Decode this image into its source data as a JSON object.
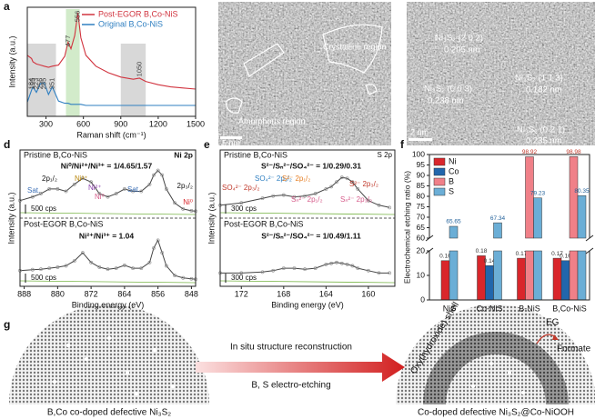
{
  "panel_labels": [
    "a",
    "b",
    "c",
    "d",
    "e",
    "f",
    "g"
  ],
  "chart_data": [
    {
      "type": "raman",
      "xlabel": "Raman shift (cm⁻¹)",
      "ylabel": "Intensity (a.u.)",
      "x": [
        150,
        184,
        195,
        223,
        256,
        285,
        320,
        351,
        400,
        450,
        477,
        500,
        530,
        556,
        580,
        620,
        700,
        800,
        900,
        1000,
        1050,
        1100,
        1200,
        1300,
        1400,
        1500
      ],
      "series": [
        {
          "name": "Post-EGOR B,Co-NiS",
          "color": "#d1343f",
          "values": [
            0.56,
            0.53,
            0.5,
            0.48,
            0.47,
            0.46,
            0.45,
            0.46,
            0.47,
            0.55,
            0.68,
            0.62,
            0.74,
            0.95,
            0.72,
            0.56,
            0.46,
            0.4,
            0.36,
            0.34,
            0.35,
            0.32,
            0.29,
            0.27,
            0.26,
            0.25
          ]
        },
        {
          "name": "Original B,Co-NiS",
          "color": "#2f7fc1",
          "values": [
            0.13,
            0.24,
            0.27,
            0.22,
            0.3,
            0.31,
            0.2,
            0.27,
            0.14,
            0.12,
            0.12,
            0.11,
            0.11,
            0.11,
            0.11,
            0.1,
            0.1,
            0.1,
            0.1,
            0.1,
            0.1,
            0.1,
            0.1,
            0.1,
            0.1,
            0.1
          ]
        }
      ],
      "xlim": [
        150,
        1500
      ],
      "xticks": [
        300,
        600,
        900,
        1200,
        1500
      ],
      "ylim": [
        0,
        1
      ],
      "regions": [
        {
          "range": [
            150,
            380
          ],
          "color": "#c8c8c8"
        },
        {
          "range": [
            460,
            570
          ],
          "color": "#bfe3b4"
        },
        {
          "range": [
            900,
            1100
          ],
          "color": "#c8c8c8"
        }
      ],
      "peaks": [
        184,
        195,
        223,
        256,
        285,
        351,
        477,
        556,
        1050
      ],
      "legend": "upper-right"
    },
    {
      "type": "xps",
      "xlabel": "Binding energy (eV)",
      "ylabel": "Intensity (a.u.)",
      "x": [
        889,
        886,
        884,
        882,
        880,
        878,
        876,
        874,
        872,
        870,
        868,
        866,
        864,
        862,
        860,
        858,
        857,
        856,
        855,
        854,
        852,
        850,
        848,
        847
      ],
      "xlim": [
        889,
        847
      ],
      "xticks": [
        888,
        880,
        872,
        864,
        856,
        848
      ],
      "ylim": [
        0,
        1
      ],
      "series": [
        {
          "name": "Pristine B,Co-NiS",
          "color": "#444444",
          "values": [
            0.3,
            0.38,
            0.45,
            0.55,
            0.55,
            0.5,
            0.65,
            0.78,
            0.7,
            0.45,
            0.38,
            0.45,
            0.55,
            0.5,
            0.5,
            0.65,
            0.85,
            0.95,
            0.85,
            0.55,
            0.25,
            0.12,
            0.08,
            0.07
          ]
        },
        {
          "name": "Post-EGOR B,Co-NiS",
          "color": "#444444",
          "values": [
            0.25,
            0.27,
            0.28,
            0.3,
            0.32,
            0.35,
            0.45,
            0.62,
            0.42,
            0.32,
            0.28,
            0.3,
            0.36,
            0.3,
            0.3,
            0.42,
            0.72,
            0.88,
            0.62,
            0.35,
            0.15,
            0.1,
            0.08,
            0.07
          ]
        }
      ],
      "annotations": [
        "Ni 2p",
        "Ni⁰/Ni²⁺/Ni³⁺ = 1/4.65/1.57",
        "Sat.",
        "2p₁/₂",
        "Ni³⁺",
        "Ni²⁺",
        "Ni⁰",
        "Sat.",
        "2p₃/₂",
        "Ni⁰",
        "500 cps",
        "Ni²⁺/Ni³⁺ = 1.04",
        "500 cps"
      ]
    },
    {
      "type": "xps",
      "xlabel": "Binding energy (eV)",
      "ylabel": "Intensity (a.u.)",
      "x": [
        174,
        172,
        170,
        169,
        168,
        167,
        166,
        165,
        164,
        163.5,
        163,
        162.5,
        162,
        161.5,
        161,
        160,
        159,
        158
      ],
      "xlim": [
        174,
        157.5
      ],
      "xticks": [
        172,
        168,
        164,
        160
      ],
      "ylim": [
        0,
        1
      ],
      "series": [
        {
          "name": "Pristine B,Co-NiS",
          "color": "#444444",
          "values": [
            0.2,
            0.25,
            0.35,
            0.4,
            0.42,
            0.38,
            0.4,
            0.45,
            0.55,
            0.6,
            0.7,
            0.8,
            0.78,
            0.7,
            0.55,
            0.3,
            0.2,
            0.15
          ]
        },
        {
          "name": "Post-EGOR B,Co-NiS",
          "color": "#444444",
          "values": [
            0.2,
            0.2,
            0.22,
            0.25,
            0.3,
            0.3,
            0.28,
            0.3,
            0.38,
            0.4,
            0.42,
            0.4,
            0.38,
            0.35,
            0.3,
            0.25,
            0.2,
            0.2
          ]
        }
      ],
      "annotations": [
        "S 2p",
        "S²⁻/Sₙ²⁻/SO₄²⁻ = 1/0.29/0.31",
        "SO₄²⁻ 2p₃/₂",
        "SO₄²⁻ 2p₁/₂",
        "S²⁻ 2p₁/₂",
        "S²⁻ 2p₃/₂",
        "Sₙ²⁻ 2p₁/₂",
        "Sₙ²⁻ 2p₃/₂",
        "300 cps",
        "S²⁻/Sₙ²⁻/SO₄²⁻ = 1/0.49/1.11",
        "300 cps"
      ]
    },
    {
      "type": "bar",
      "ylabel": "Electrochemical etching ratio (%)",
      "categories": [
        "NiS",
        "Co-NiS",
        "B-NiS",
        "B,Co-NiS"
      ],
      "series": [
        {
          "name": "Ni",
          "color": "#d9262b",
          "values": [
            16,
            18,
            17,
            17
          ],
          "value_labels": [
            "0.16",
            "0.18",
            "0.17",
            "0.17"
          ]
        },
        {
          "name": "Co",
          "color": "#2166ac",
          "values": [
            null,
            14,
            null,
            16
          ],
          "value_labels": [
            null,
            "0.14",
            null,
            "0.16"
          ]
        },
        {
          "name": "B",
          "color": "#f08088",
          "values": [
            null,
            null,
            98.92,
            98.98
          ],
          "value_labels": [
            null,
            null,
            "98.92",
            "98.98"
          ]
        },
        {
          "name": "S",
          "color": "#6baed6",
          "values": [
            65.65,
            67.34,
            79.23,
            80.35
          ],
          "value_labels": [
            "65.65",
            "67.34",
            "79.23",
            "80.35"
          ]
        }
      ],
      "ylim": [
        0,
        100
      ],
      "ybreak": [
        20,
        60
      ],
      "yticks": [
        0,
        10,
        20,
        60,
        65,
        70,
        75,
        80,
        85,
        90,
        95,
        100
      ],
      "legend": "upper-left"
    }
  ],
  "tem_b": {
    "labels": [
      "Crystalline region",
      "Amorphous region"
    ],
    "scale_bar": "5 nm"
  },
  "tem_c": {
    "labels": [
      "Ni₃S₂ (2 0 2)",
      "0.205 nm",
      "Ni₃S₂ (0 0 3)",
      "0.238 nm",
      "Ni₃S₂ (1 1 3)",
      "0.182 nm",
      "Ni₃S₂ (0 2 1)",
      "0.235 nm"
    ],
    "scale_bar": "2 nm"
  },
  "schematic": {
    "arrow_top": "In situ structure reconstruction",
    "arrow_bottom": "B, S electro-etching",
    "left_caption": "B,Co co-doped defective Ni₃S₂",
    "shell": "Oxy(hydroxide) shell",
    "reactant": "EG",
    "product": "Formate",
    "right_caption": "Co-doped defective Ni₃S₂@Co-NiOOH"
  }
}
